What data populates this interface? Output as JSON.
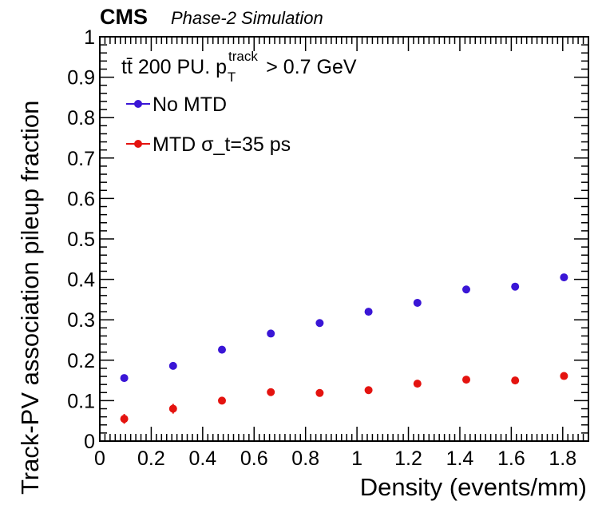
{
  "chart_data": {
    "type": "scatter",
    "experiment": "CMS",
    "experiment_sub": "Phase-2 Simulation",
    "annotation": {
      "main": "tt̄ 200 PU. p",
      "sub": "T",
      "sup": "track",
      "suffix": "> 0.7 GeV"
    },
    "xlabel": "Density (events/mm)",
    "ylabel": "Track-PV association pileup fraction",
    "xlim": [
      0,
      1.9
    ],
    "ylim": [
      0,
      1
    ],
    "xticks": [
      0,
      0.2,
      0.4,
      0.6,
      0.8,
      1,
      1.2,
      1.4,
      1.6,
      1.8
    ],
    "xtick_labels": [
      "0",
      "0.2",
      "0.4",
      "0.6",
      "0.8",
      "1",
      "1.2",
      "1.4",
      "1.6",
      "1.8"
    ],
    "yticks": [
      0,
      0.1,
      0.2,
      0.3,
      0.4,
      0.5,
      0.6,
      0.7,
      0.8,
      0.9,
      1
    ],
    "ytick_labels": [
      "0",
      "0.1",
      "0.2",
      "0.3",
      "0.4",
      "0.5",
      "0.6",
      "0.7",
      "0.8",
      "0.9",
      "1"
    ],
    "grid": false,
    "legend_position": "top-left",
    "series": [
      {
        "name": "No MTD",
        "color": "#3a16d6",
        "x": [
          0.095,
          0.285,
          0.475,
          0.665,
          0.855,
          1.045,
          1.235,
          1.425,
          1.615,
          1.805
        ],
        "y": [
          0.156,
          0.186,
          0.226,
          0.266,
          0.292,
          0.32,
          0.342,
          0.375,
          0.382,
          0.405
        ],
        "yerr": [
          0.005,
          0.005,
          0.005,
          0.004,
          0.004,
          0.004,
          0.004,
          0.004,
          0.004,
          0.004
        ]
      },
      {
        "name": "MTD σ_t=35 ps",
        "color": "#e4130f",
        "x": [
          0.095,
          0.285,
          0.475,
          0.665,
          0.855,
          1.045,
          1.235,
          1.425,
          1.615,
          1.805
        ],
        "y": [
          0.055,
          0.08,
          0.1,
          0.121,
          0.119,
          0.126,
          0.142,
          0.152,
          0.15,
          0.161
        ],
        "yerr": [
          0.012,
          0.012,
          0.008,
          0.007,
          0.005,
          0.005,
          0.005,
          0.005,
          0.005,
          0.005
        ]
      }
    ]
  }
}
